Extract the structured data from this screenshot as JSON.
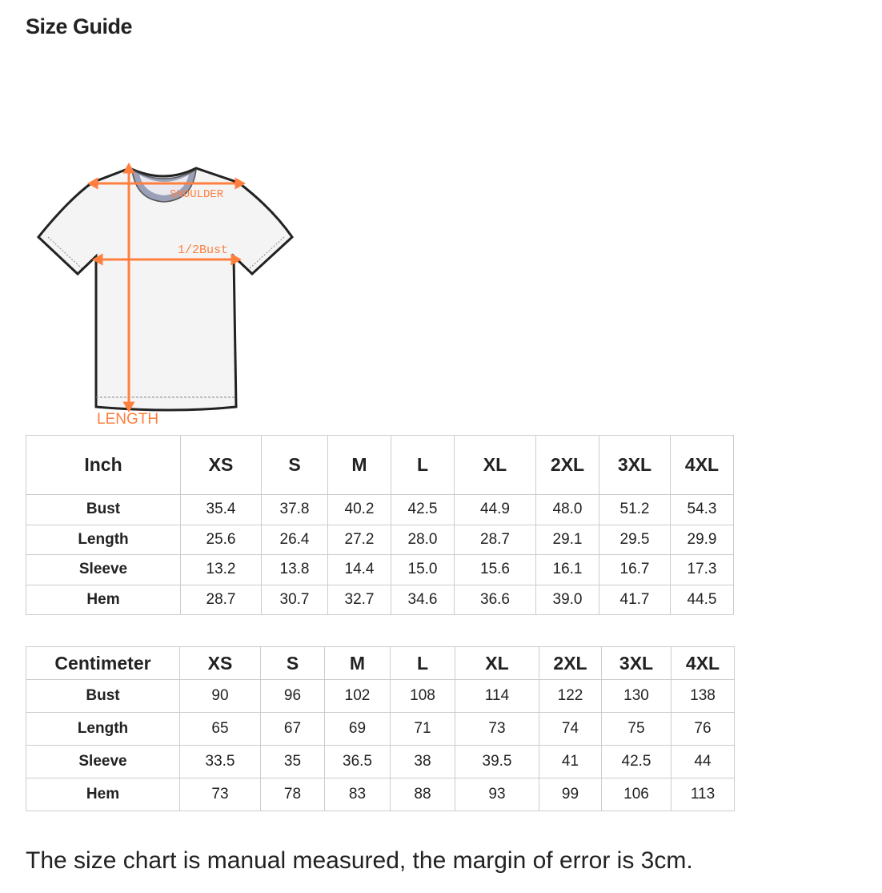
{
  "title": "Size Guide",
  "diagram": {
    "shoulder": "SHOULDER",
    "bust": "1/2Bust",
    "length": "LENGTH",
    "accent": "#ff7f3f"
  },
  "sizes": [
    "XS",
    "S",
    "M",
    "L",
    "XL",
    "2XL",
    "3XL",
    "4XL"
  ],
  "inch_table": {
    "unit": "Inch",
    "rows": [
      {
        "label": "Bust",
        "values": [
          "35.4",
          "37.8",
          "40.2",
          "42.5",
          "44.9",
          "48.0",
          "51.2",
          "54.3"
        ]
      },
      {
        "label": "Length",
        "values": [
          "25.6",
          "26.4",
          "27.2",
          "28.0",
          "28.7",
          "29.1",
          "29.5",
          "29.9"
        ]
      },
      {
        "label": "Sleeve",
        "values": [
          "13.2",
          "13.8",
          "14.4",
          "15.0",
          "15.6",
          "16.1",
          "16.7",
          "17.3"
        ]
      },
      {
        "label": "Hem",
        "values": [
          "28.7",
          "30.7",
          "32.7",
          "34.6",
          "36.6",
          "39.0",
          "41.7",
          "44.5"
        ]
      }
    ]
  },
  "cm_table": {
    "unit": "Centimeter",
    "rows": [
      {
        "label": "Bust",
        "values": [
          "90",
          "96",
          "102",
          "108",
          "114",
          "122",
          "130",
          "138"
        ]
      },
      {
        "label": "Length",
        "values": [
          "65",
          "67",
          "69",
          "71",
          "73",
          "74",
          "75",
          "76"
        ]
      },
      {
        "label": "Sleeve",
        "values": [
          "33.5",
          "35",
          "36.5",
          "38",
          "39.5",
          "41",
          "42.5",
          "44"
        ]
      },
      {
        "label": "Hem",
        "values": [
          "73",
          "78",
          "83",
          "88",
          "93",
          "99",
          "106",
          "113"
        ]
      }
    ]
  },
  "note": "The size chart is manual measured, the margin of error is 3cm."
}
